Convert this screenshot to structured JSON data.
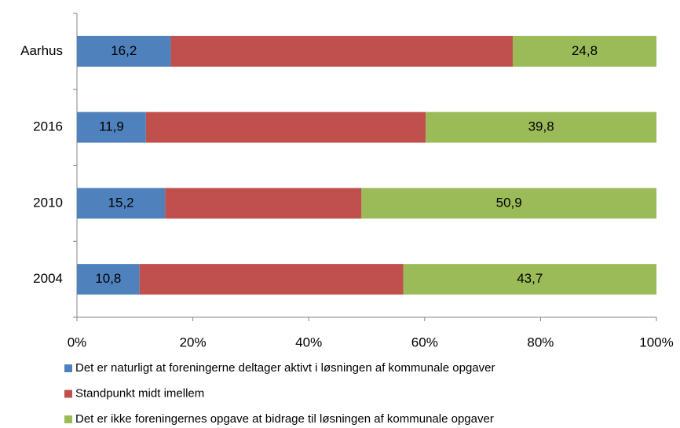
{
  "chart_data": {
    "type": "stacked_barh",
    "categories": [
      "Aarhus",
      "2016",
      "2010",
      "2004"
    ],
    "series": [
      {
        "name": "Det er naturligt at foreningerne deltager aktivt i løsningen af kommunale opgaver",
        "color": "#4f81bd",
        "values": [
          16.2,
          11.9,
          15.2,
          10.8
        ],
        "value_labels": [
          "16,2",
          "11,9",
          "15,2",
          "10,8"
        ]
      },
      {
        "name": "Standpunkt midt imellem",
        "color": "#c0504d",
        "values": [
          59.0,
          48.3,
          33.9,
          45.5
        ]
      },
      {
        "name": "Det er ikke foreningernes opgave at bidrage til løsningen af kommunale opgaver",
        "color": "#9bbb59",
        "values": [
          24.8,
          39.8,
          50.9,
          43.7
        ],
        "value_labels": [
          "24,8",
          "39,8",
          "50,9",
          "43,7"
        ]
      }
    ],
    "xlim": [
      0,
      100
    ],
    "xticks": [
      {
        "value": 0,
        "label": "0%"
      },
      {
        "value": 20,
        "label": "20%"
      },
      {
        "value": 40,
        "label": "40%"
      },
      {
        "value": 60,
        "label": "60%"
      },
      {
        "value": 80,
        "label": "80%"
      },
      {
        "value": 100,
        "label": "100%"
      }
    ],
    "legend": "bottom"
  }
}
